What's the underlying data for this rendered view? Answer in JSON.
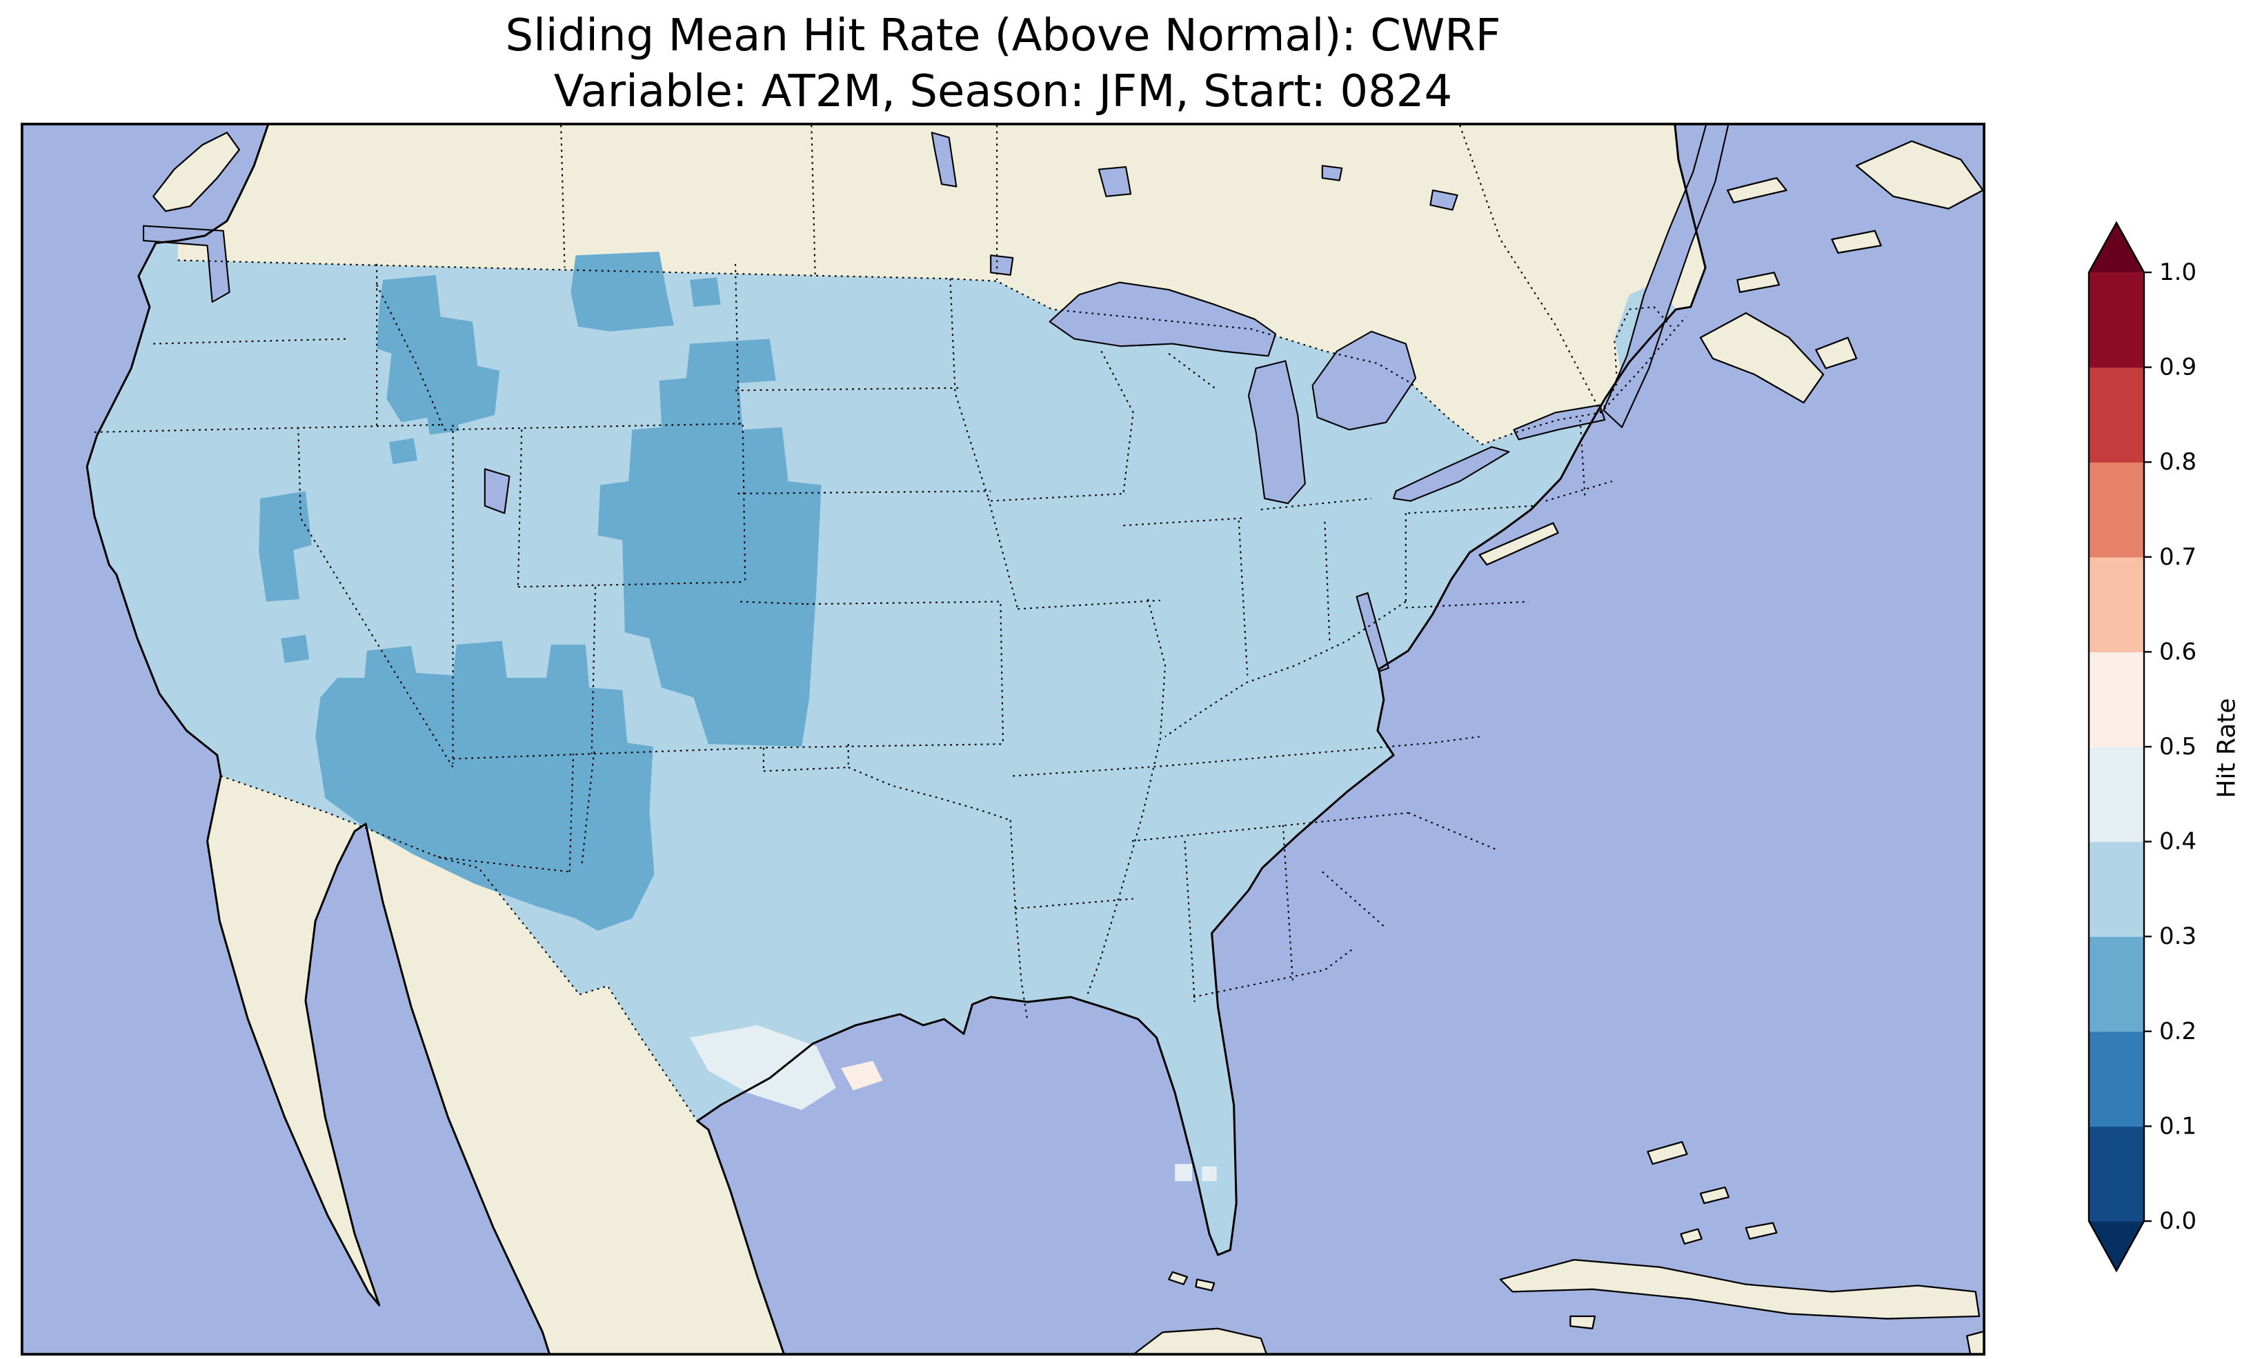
{
  "title": {
    "line1": "Sliding Mean Hit Rate (Above Normal): CWRF",
    "line2": "Variable: AT2M, Season: JFM, Start: 0824"
  },
  "colors": {
    "figure_bg": "#ffffff",
    "ocean": "#a3b3e2",
    "land": "#f0eedb",
    "outline": "#000000"
  },
  "chart_data": {
    "type": "heatmap",
    "title": "Sliding Mean Hit Rate (Above Normal): CWRF",
    "subtitle": "Variable: AT2M, Season: JFM, Start: 0824",
    "model": "CWRF",
    "variable": "AT2M",
    "season": "JFM",
    "start": "0824",
    "metric": "Hit Rate",
    "category": "Above Normal",
    "map_extent": "Contiguous United States with surrounding Canada, Mexico, Atlantic, Pacific, Gulf of Mexico and Great Lakes",
    "no_data_regions": "Canada, Mexico, Caribbean islands and oceans (base land/water fill only)",
    "colorbar": {
      "label": "Hit Rate",
      "orientation": "vertical-right",
      "extend": "both",
      "ticks": [
        "0.0",
        "0.1",
        "0.2",
        "0.3",
        "0.4",
        "0.5",
        "0.6",
        "0.7",
        "0.8",
        "0.9",
        "1.0"
      ],
      "under_color": "#053061",
      "over_color": "#67001f",
      "bands": [
        {
          "range": [
            0.0,
            0.1
          ],
          "color": "#134b86"
        },
        {
          "range": [
            0.1,
            0.2
          ],
          "color": "#327cb8"
        },
        {
          "range": [
            0.2,
            0.3
          ],
          "color": "#6aacd0"
        },
        {
          "range": [
            0.3,
            0.4
          ],
          "color": "#b1d5e7"
        },
        {
          "range": [
            0.4,
            0.5
          ],
          "color": "#e4eef3"
        },
        {
          "range": [
            0.5,
            0.6
          ],
          "color": "#faeee6"
        },
        {
          "range": [
            0.6,
            0.7
          ],
          "color": "#f8c0a4"
        },
        {
          "range": [
            0.7,
            0.8
          ],
          "color": "#e58267"
        },
        {
          "range": [
            0.8,
            0.9
          ],
          "color": "#c43c3c"
        },
        {
          "range": [
            0.9,
            1.0
          ],
          "color": "#8c0c25"
        }
      ]
    },
    "map": {
      "regions": [
        {
          "area": "Most of the contiguous United States",
          "hit_rate_band": [
            0.3,
            0.4
          ]
        },
        {
          "area": "Colorado, SE Wyoming and western Nebraska high plains",
          "hit_rate_band": [
            0.2,
            0.3
          ]
        },
        {
          "area": "Arizona, New Mexico, southern Utah and southern Nevada (Four Corners / Southwest)",
          "hit_rate_band": [
            0.2,
            0.3
          ]
        },
        {
          "area": "Idaho and western Montana (northern Rockies)",
          "hit_rate_band": [
            0.2,
            0.3
          ]
        },
        {
          "area": "North-central Montana",
          "hit_rate_band": [
            0.2,
            0.3
          ]
        },
        {
          "area": "Central Nevada pockets",
          "hit_rate_band": [
            0.2,
            0.3
          ]
        },
        {
          "area": "South Texas Gulf coast",
          "hit_rate_band": [
            0.4,
            0.5
          ]
        },
        {
          "area": "Small pockets near the Texas-Louisiana Gulf coast",
          "hit_rate_band": [
            0.5,
            0.6
          ]
        },
        {
          "area": "Small pockets in south Florida",
          "hit_rate_band": [
            0.4,
            0.5
          ]
        }
      ],
      "boundaries": "US state and international borders drawn as dotted lines; coastlines solid black"
    }
  }
}
